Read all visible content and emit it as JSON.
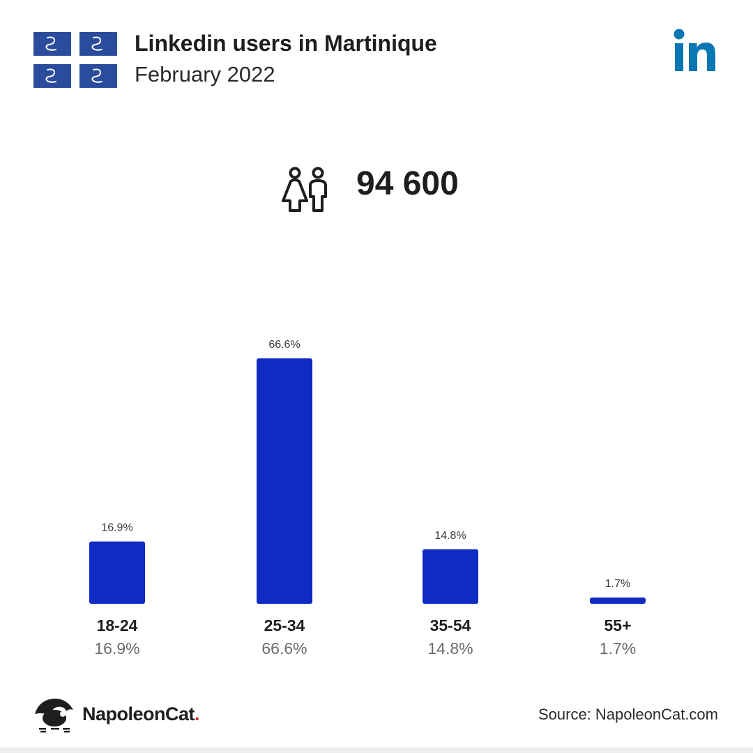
{
  "header": {
    "title": "Linkedin users in Martinique",
    "subtitle": "February 2022"
  },
  "summary": {
    "total_users": "94 600"
  },
  "colors": {
    "bar": "#0f2bc4",
    "linkedin": "#0a77b5",
    "flag_blue": "#2b4c9c"
  },
  "chart_data": {
    "type": "bar",
    "categories": [
      "18-24",
      "25-34",
      "35-54",
      "55+"
    ],
    "values": [
      16.9,
      66.6,
      14.8,
      1.7
    ],
    "value_labels": [
      "16.9%",
      "66.6%",
      "14.8%",
      "1.7%"
    ],
    "title": "",
    "xlabel": "",
    "ylabel": "",
    "ylim": [
      0,
      66.6
    ],
    "grid": false
  },
  "footer": {
    "brand_name": "NapoleonCat",
    "brand_dot": ".",
    "source": "Source: NapoleonCat.com"
  }
}
